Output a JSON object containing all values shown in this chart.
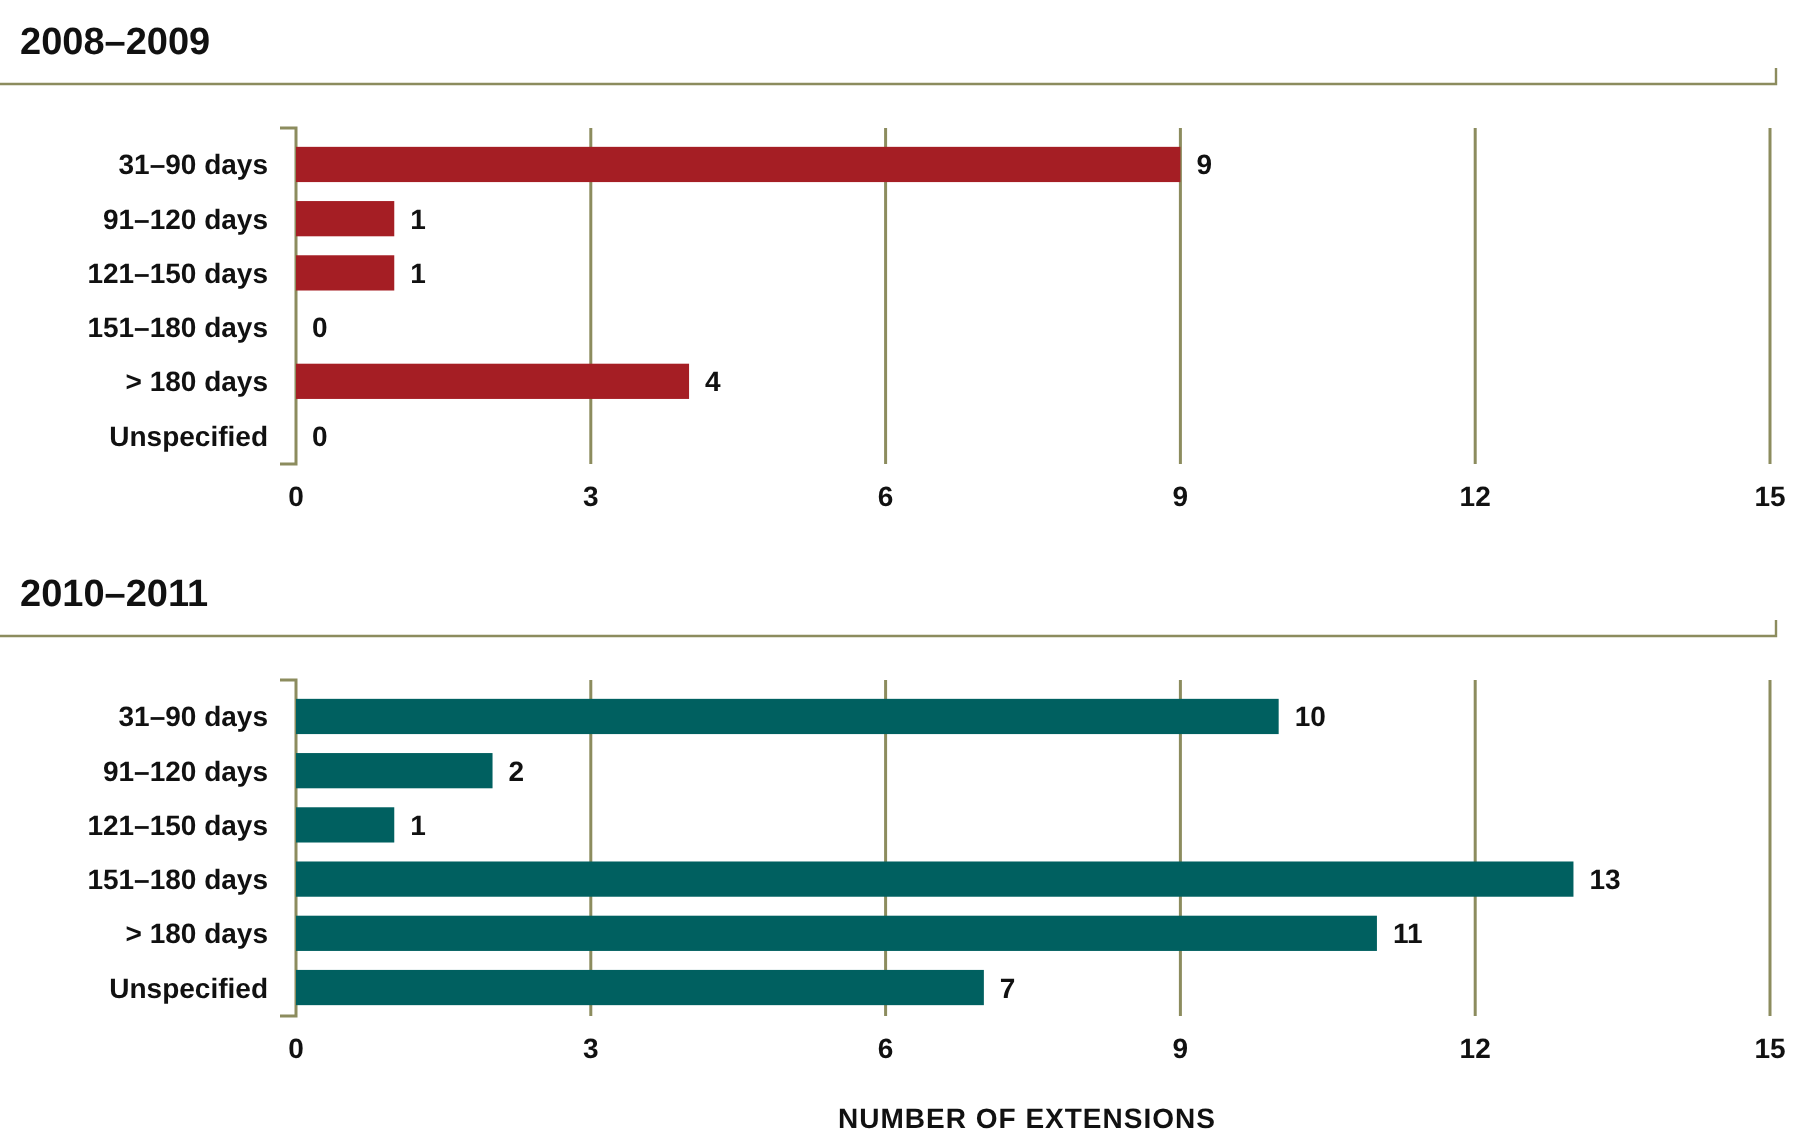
{
  "chart_data": [
    {
      "type": "bar",
      "orientation": "horizontal",
      "title": "2008–2009",
      "categories": [
        "31–90 days",
        "91–120 days",
        "121–150 days",
        "151–180 days",
        "> 180 days",
        "Unspecified"
      ],
      "values": [
        9,
        1,
        1,
        0,
        4,
        0
      ],
      "color": "#a51e24",
      "xlim": [
        0,
        15
      ],
      "xticks": [
        0,
        3,
        6,
        9,
        12,
        15
      ],
      "grid": "x",
      "data_labels": true
    },
    {
      "type": "bar",
      "orientation": "horizontal",
      "title": "2010–2011",
      "xlabel": "NUMBER OF EXTENSIONS",
      "categories": [
        "31–90 days",
        "91–120 days",
        "121–150 days",
        "151–180 days",
        "> 180 days",
        "Unspecified"
      ],
      "values": [
        10,
        2,
        1,
        13,
        11,
        7
      ],
      "color": "#006060",
      "xlim": [
        0,
        15
      ],
      "xticks": [
        0,
        3,
        6,
        9,
        12,
        15
      ],
      "grid": "x",
      "data_labels": true
    }
  ]
}
